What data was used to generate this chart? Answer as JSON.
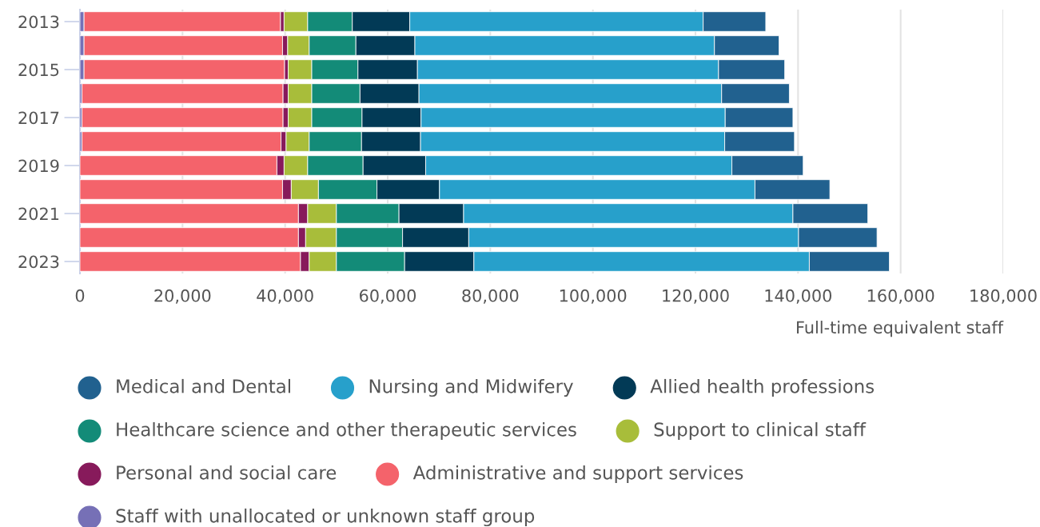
{
  "chart_data": {
    "type": "bar",
    "orientation": "horizontal",
    "stacked": true,
    "categories": [
      "2013",
      null,
      "2015",
      null,
      "2017",
      null,
      "2019",
      null,
      "2021",
      null,
      "2023"
    ],
    "xlabel": "Full-time equivalent staff",
    "xlim": [
      0,
      180000
    ],
    "xticks": [
      {
        "value": 0,
        "label": "0"
      },
      {
        "value": 20000,
        "label": "20,000"
      },
      {
        "value": 40000,
        "label": "40,000"
      },
      {
        "value": 60000,
        "label": "60,000"
      },
      {
        "value": 80000,
        "label": "80,000"
      },
      {
        "value": 100000,
        "label": "100,000"
      },
      {
        "value": 120000,
        "label": "120,000"
      },
      {
        "value": 140000,
        "label": "140,000"
      },
      {
        "value": 160000,
        "label": "160,000"
      },
      {
        "value": 180000,
        "label": "180,000"
      }
    ],
    "grid": "x",
    "legend": "bottom",
    "marker": "circle",
    "series": [
      {
        "name": "Staff with unallocated or unknown staff group",
        "color": "#7670b6",
        "values": [
          800,
          800,
          800,
          400,
          400,
          400,
          0,
          0,
          0,
          0,
          0
        ]
      },
      {
        "name": "Administrative and support services",
        "color": "#f4636b",
        "values": [
          38300,
          38700,
          39100,
          39200,
          39200,
          38800,
          38400,
          39500,
          42600,
          42600,
          43000
        ]
      },
      {
        "name": "Personal and social care",
        "color": "#871a5b",
        "values": [
          700,
          1000,
          700,
          1000,
          1000,
          1000,
          1400,
          1700,
          1800,
          1400,
          1700
        ]
      },
      {
        "name": "Support to clinical staff",
        "color": "#a8bd3a",
        "values": [
          4600,
          4200,
          4600,
          4600,
          4600,
          4500,
          4600,
          5300,
          5600,
          6000,
          5300
        ]
      },
      {
        "name": "Healthcare science and other therapeutic services",
        "color": "#138b78",
        "values": [
          8700,
          9100,
          9000,
          9400,
          9800,
          10200,
          10800,
          11400,
          12200,
          12900,
          13300
        ]
      },
      {
        "name": "Allied health professions",
        "color": "#023a56",
        "values": [
          11200,
          11500,
          11600,
          11500,
          11500,
          11500,
          12200,
          12200,
          12600,
          12900,
          13500
        ]
      },
      {
        "name": "Nursing and Midwifery",
        "color": "#27a0cb",
        "values": [
          57200,
          58400,
          58700,
          59000,
          59300,
          59300,
          59700,
          61500,
          64200,
          64300,
          65400
        ]
      },
      {
        "name": "Medical and Dental",
        "color": "#21618f",
        "values": [
          12200,
          12600,
          12900,
          13200,
          13200,
          13600,
          13900,
          14600,
          14600,
          15300,
          15600
        ]
      }
    ]
  }
}
